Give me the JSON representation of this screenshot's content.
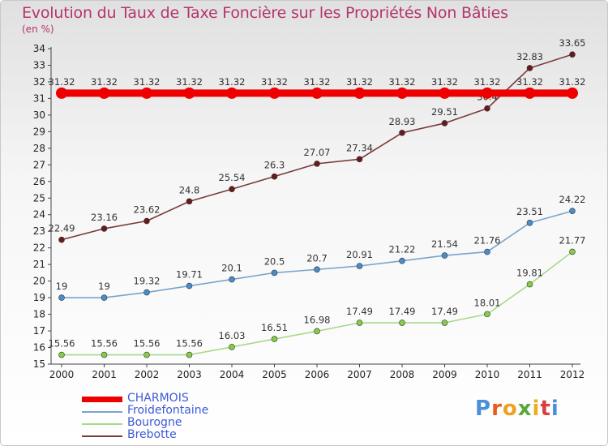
{
  "title": "Evolution du Taux de Taxe Foncière sur les Propriétés Non Bâties",
  "unit_label": "(en %)",
  "logo_text": "Proxiti",
  "chart_data": {
    "type": "line",
    "categories": [
      "2000",
      "2001",
      "2002",
      "2003",
      "2004",
      "2005",
      "2006",
      "2007",
      "2008",
      "2009",
      "2010",
      "2011",
      "2012"
    ],
    "ylim": [
      15,
      34
    ],
    "yticks": [
      15,
      16,
      17,
      18,
      19,
      20,
      21,
      22,
      23,
      24,
      25,
      26,
      27,
      28,
      29,
      30,
      31,
      32,
      33,
      34
    ],
    "grid": false,
    "series": [
      {
        "name": "CHARMOIS",
        "color": "#ee0000",
        "marker": "#ee0000",
        "bold": true,
        "values": [
          31.32,
          31.32,
          31.32,
          31.32,
          31.32,
          31.32,
          31.32,
          31.32,
          31.32,
          31.32,
          31.32,
          31.32,
          31.32
        ],
        "labels": [
          "31.32",
          "31.32",
          "31.32",
          "31.32",
          "31.32",
          "31.32",
          "31.32",
          "31.32",
          "31.32",
          "31.32",
          "31.32",
          "31.32",
          "31.32"
        ]
      },
      {
        "name": "Froidefontaine",
        "color": "#7aa3cc",
        "marker": "#4a8ccc",
        "bold": false,
        "values": [
          19,
          19,
          19.32,
          19.71,
          20.1,
          20.5,
          20.7,
          20.91,
          21.22,
          21.54,
          21.76,
          23.51,
          24.22
        ],
        "labels": [
          "19",
          "19",
          "19.32",
          "19.71",
          "20.1",
          "20.5",
          "20.7",
          "20.91",
          "21.22",
          "21.54",
          "21.76",
          "23.51",
          "24.22"
        ]
      },
      {
        "name": "Bourogne",
        "color": "#a8d98a",
        "marker": "#86cc44",
        "bold": false,
        "values": [
          15.56,
          15.56,
          15.56,
          15.56,
          16.03,
          16.51,
          16.98,
          17.49,
          17.49,
          17.49,
          18.01,
          19.81,
          21.77
        ],
        "labels": [
          "15.56",
          "15.56",
          "15.56",
          "15.56",
          "16.03",
          "16.51",
          "16.98",
          "17.49",
          "17.49",
          "17.49",
          "18.01",
          "19.81",
          "21.77"
        ]
      },
      {
        "name": "Brebotte",
        "color": "#7a3a3a",
        "marker": "#6a1a1a",
        "bold": false,
        "values": [
          22.49,
          23.16,
          23.62,
          24.8,
          25.54,
          26.3,
          27.07,
          27.34,
          28.93,
          29.51,
          30.4,
          32.83,
          33.65
        ],
        "labels": [
          "22.49",
          "23.16",
          "23.62",
          "24.8",
          "25.54",
          "26.3",
          "27.07",
          "27.34",
          "28.93",
          "29.51",
          "30.4",
          "32.83",
          "33.65"
        ]
      }
    ]
  }
}
